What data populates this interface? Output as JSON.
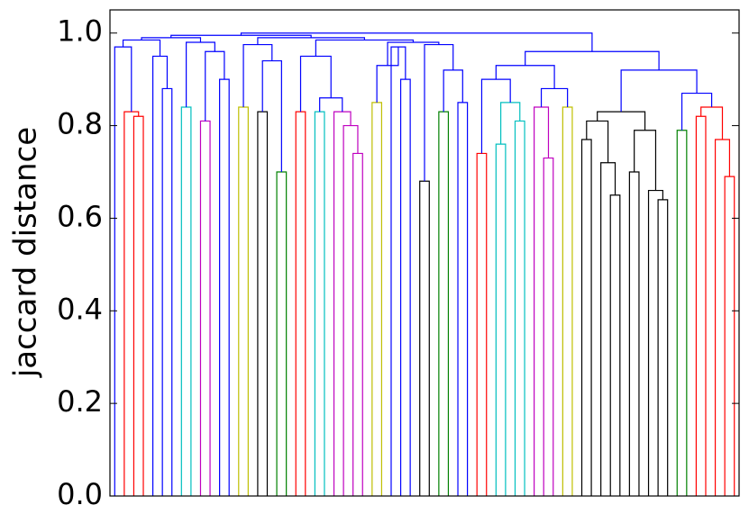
{
  "chart_data": {
    "type": "dendrogram",
    "ylabel": "jaccard distance",
    "ylim": [
      0,
      1.05
    ],
    "yticks": [
      {
        "value": 0,
        "label": "0.0"
      },
      {
        "value": 0.2,
        "label": "0.2"
      },
      {
        "value": 0.4,
        "label": "0.4"
      },
      {
        "value": 0.6,
        "label": "0.6"
      },
      {
        "value": 0.8,
        "label": "0.8"
      },
      {
        "value": 1,
        "label": "1.0"
      }
    ],
    "tree": {
      "height": 1.0,
      "color": "#0000ff",
      "children": [
        {
          "height": 0.995,
          "color": "#0000ff",
          "children": [
            {
              "height": 0.99,
              "color": "#0000ff",
              "children": [
                {
                  "height": 0.985,
                  "color": "#0000ff",
                  "children": [
                    {
                      "height": 0.97,
                      "color": "#0000ff",
                      "children": [
                        0,
                        {
                          "height": 0.83,
                          "color": "#ff0000",
                          "children": [
                            0,
                            {
                              "height": 0.82,
                              "color": "#ff0000",
                              "children": [
                                0,
                                0
                              ]
                            }
                          ]
                        }
                      ]
                    },
                    {
                      "height": 0.95,
                      "color": "#0000ff",
                      "children": [
                        0,
                        {
                          "height": 0.88,
                          "color": "#0000ff",
                          "children": [
                            0,
                            0
                          ]
                        }
                      ]
                    }
                  ]
                },
                {
                  "height": 0.98,
                  "color": "#0000ff",
                  "children": [
                    {
                      "height": 0.84,
                      "color": "#00bfbf",
                      "children": [
                        0,
                        0
                      ]
                    },
                    {
                      "height": 0.96,
                      "color": "#0000ff",
                      "children": [
                        {
                          "height": 0.81,
                          "color": "#bf00bf",
                          "children": [
                            0,
                            0
                          ]
                        },
                        {
                          "height": 0.9,
                          "color": "#0000ff",
                          "children": [
                            0,
                            0
                          ]
                        }
                      ]
                    }
                  ]
                }
              ]
            },
            {
              "height": 0.99,
              "color": "#0000ff",
              "children": [
                {
                  "height": 0.975,
                  "color": "#0000ff",
                  "children": [
                    {
                      "height": 0.84,
                      "color": "#bfbf00",
                      "children": [
                        0,
                        0
                      ]
                    },
                    {
                      "height": 0.94,
                      "color": "#0000ff",
                      "children": [
                        {
                          "height": 0.83,
                          "color": "#000000",
                          "children": [
                            0,
                            0
                          ]
                        },
                        {
                          "height": 0.7,
                          "color": "#008000",
                          "children": [
                            0,
                            0
                          ]
                        }
                      ]
                    }
                  ]
                },
                {
                  "height": 0.985,
                  "color": "#0000ff",
                  "children": [
                    {
                      "height": 0.95,
                      "color": "#0000ff",
                      "children": [
                        {
                          "height": 0.83,
                          "color": "#ff0000",
                          "children": [
                            0,
                            0
                          ]
                        },
                        {
                          "height": 0.86,
                          "color": "#0000ff",
                          "children": [
                            {
                              "height": 0.83,
                              "color": "#00bfbf",
                              "children": [
                                0,
                                0
                              ]
                            },
                            {
                              "height": 0.83,
                              "color": "#bf00bf",
                              "children": [
                                0,
                                {
                                  "height": 0.8,
                                  "color": "#bf00bf",
                                  "children": [
                                    0,
                                    {
                                      "height": 0.74,
                                      "color": "#bf00bf",
                                      "children": [
                                        0,
                                        0
                                      ]
                                    }
                                  ]
                                }
                              ]
                            }
                          ]
                        }
                      ]
                    },
                    {
                      "height": 0.98,
                      "color": "#0000ff",
                      "children": [
                        {
                          "height": 0.93,
                          "color": "#0000ff",
                          "children": [
                            {
                              "height": 0.85,
                              "color": "#bfbf00",
                              "children": [
                                0,
                                0
                              ]
                            },
                            {
                              "height": 0.97,
                              "color": "#0000ff",
                              "children": [
                                0,
                                {
                                  "height": 0.9,
                                  "color": "#0000ff",
                                  "children": [
                                    0,
                                    0
                                  ]
                                }
                              ]
                            }
                          ]
                        },
                        {
                          "height": 0.975,
                          "color": "#0000ff",
                          "children": [
                            {
                              "height": 0.68,
                              "color": "#000000",
                              "children": [
                                0,
                                0
                              ]
                            },
                            {
                              "height": 0.92,
                              "color": "#0000ff",
                              "children": [
                                {
                                  "height": 0.83,
                                  "color": "#008000",
                                  "children": [
                                    0,
                                    0
                                  ]
                                },
                                {
                                  "height": 0.85,
                                  "color": "#0000ff",
                                  "children": [
                                    0,
                                    0
                                  ]
                                }
                              ]
                            }
                          ]
                        }
                      ]
                    }
                  ]
                }
              ]
            }
          ]
        },
        {
          "height": 0.96,
          "color": "#0000ff",
          "children": [
            {
              "height": 0.93,
              "color": "#0000ff",
              "children": [
                {
                  "height": 0.9,
                  "color": "#0000ff",
                  "children": [
                    {
                      "height": 0.74,
                      "color": "#ff0000",
                      "children": [
                        0,
                        0
                      ]
                    },
                    {
                      "height": 0.85,
                      "color": "#00bfbf",
                      "children": [
                        {
                          "height": 0.76,
                          "color": "#00bfbf",
                          "children": [
                            0,
                            0
                          ]
                        },
                        {
                          "height": 0.81,
                          "color": "#00bfbf",
                          "children": [
                            0,
                            0
                          ]
                        }
                      ]
                    }
                  ]
                },
                {
                  "height": 0.88,
                  "color": "#0000ff",
                  "children": [
                    {
                      "height": 0.84,
                      "color": "#bf00bf",
                      "children": [
                        0,
                        {
                          "height": 0.73,
                          "color": "#bf00bf",
                          "children": [
                            0,
                            0
                          ]
                        }
                      ]
                    },
                    {
                      "height": 0.84,
                      "color": "#bfbf00",
                      "children": [
                        0,
                        0
                      ]
                    }
                  ]
                }
              ]
            },
            {
              "height": 0.92,
              "color": "#0000ff",
              "children": [
                {
                  "height": 0.83,
                  "color": "#000000",
                  "children": [
                    {
                      "height": 0.81,
                      "color": "#000000",
                      "children": [
                        {
                          "height": 0.77,
                          "color": "#000000",
                          "children": [
                            0,
                            0
                          ]
                        },
                        {
                          "height": 0.72,
                          "color": "#000000",
                          "children": [
                            0,
                            {
                              "height": 0.65,
                              "color": "#000000",
                              "children": [
                                0,
                                0
                              ]
                            }
                          ]
                        }
                      ]
                    },
                    {
                      "height": 0.79,
                      "color": "#000000",
                      "children": [
                        {
                          "height": 0.7,
                          "color": "#000000",
                          "children": [
                            0,
                            0
                          ]
                        },
                        {
                          "height": 0.66,
                          "color": "#000000",
                          "children": [
                            0,
                            {
                              "height": 0.64,
                              "color": "#000000",
                              "children": [
                                0,
                                0
                              ]
                            }
                          ]
                        }
                      ]
                    }
                  ]
                },
                {
                  "height": 0.87,
                  "color": "#0000ff",
                  "children": [
                    {
                      "height": 0.79,
                      "color": "#008000",
                      "children": [
                        0,
                        0
                      ]
                    },
                    {
                      "height": 0.84,
                      "color": "#ff0000",
                      "children": [
                        {
                          "height": 0.82,
                          "color": "#ff0000",
                          "children": [
                            0,
                            0
                          ]
                        },
                        {
                          "height": 0.77,
                          "color": "#ff0000",
                          "children": [
                            0,
                            {
                              "height": 0.69,
                              "color": "#ff0000",
                              "children": [
                                0,
                                0
                              ]
                            }
                          ]
                        }
                      ]
                    }
                  ]
                }
              ]
            }
          ]
        }
      ]
    }
  }
}
